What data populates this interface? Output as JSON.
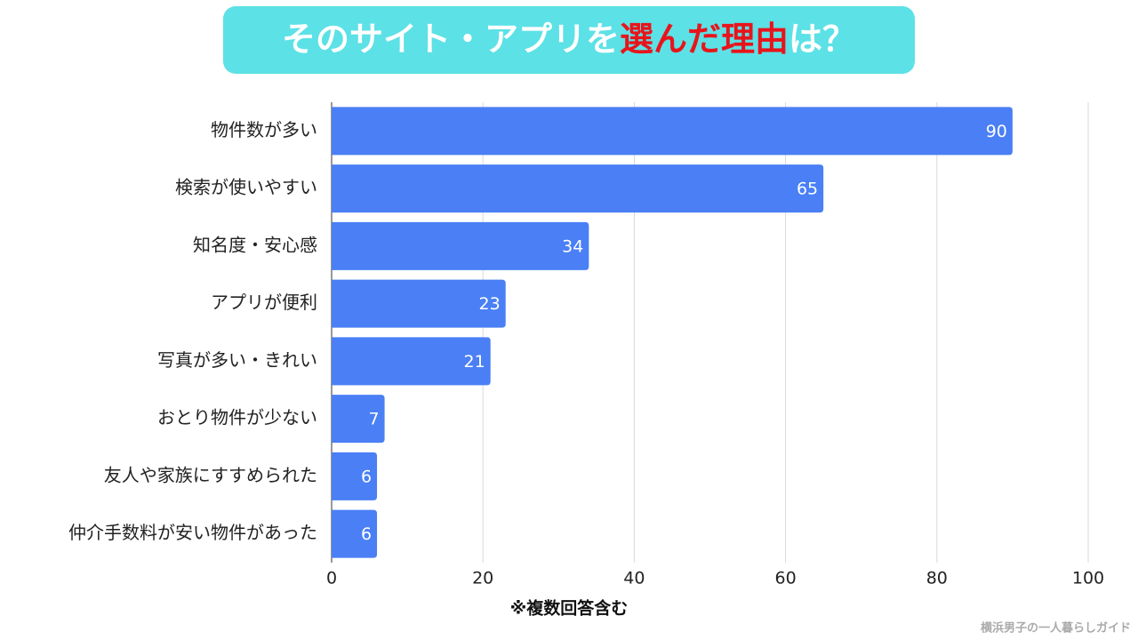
{
  "chart_data": {
    "type": "barh",
    "title": [
      {
        "text": "そのサイト・アプリを",
        "color": "#ffffff"
      },
      {
        "text": "選んだ理由",
        "color": "#e8141b"
      },
      {
        "text": "は？",
        "color": "#ffffff"
      }
    ],
    "title_background": "#5ce1e6",
    "categories": [
      "物件数が多い",
      "検索が使いやすい",
      "知名度・安心感",
      "アプリが便利",
      "写真が多い・きれい",
      "おとり物件が少ない",
      "友人や家族にすすめられた",
      "仲介手数料が安い物件があった"
    ],
    "values": [
      90,
      65,
      34,
      23,
      21,
      7,
      6,
      6
    ],
    "color": "#4a7ff5",
    "xlim": [
      0,
      100
    ],
    "xticks": [
      0,
      20,
      40,
      60,
      80,
      100
    ],
    "grid": true,
    "note": "※複数回答含む",
    "credit": "横浜男子の一人暮らしガイド"
  }
}
